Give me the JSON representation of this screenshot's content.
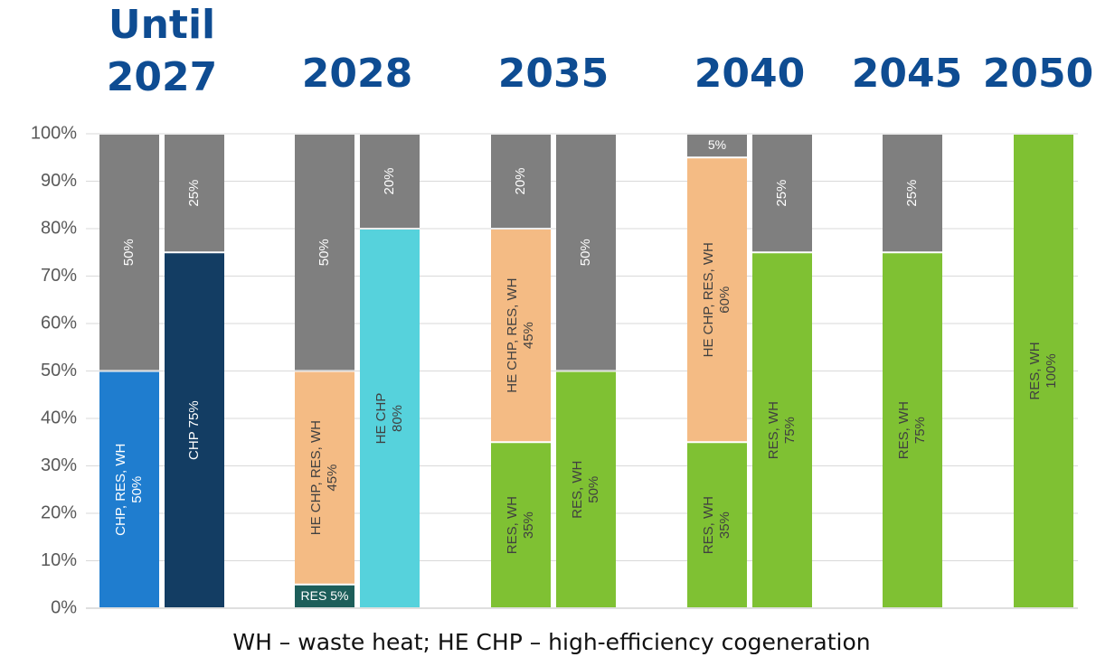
{
  "chart_data": {
    "type": "stacked_bar",
    "footnote": "WH – waste heat; HE CHP – high-efficiency cogeneration",
    "ylim": [
      0,
      100
    ],
    "yticks": [
      {
        "value": 0,
        "label": "0%"
      },
      {
        "value": 10,
        "label": "10%"
      },
      {
        "value": 20,
        "label": "20%"
      },
      {
        "value": 30,
        "label": "30%"
      },
      {
        "value": 40,
        "label": "40%"
      },
      {
        "value": 50,
        "label": "50%"
      },
      {
        "value": 60,
        "label": "60%"
      },
      {
        "value": 70,
        "label": "70%"
      },
      {
        "value": 80,
        "label": "80%"
      },
      {
        "value": 90,
        "label": "90%"
      },
      {
        "value": 100,
        "label": "100%"
      }
    ],
    "grid": true,
    "groups": [
      {
        "label": "Until 2027",
        "bars": [
          {
            "segments": [
              {
                "name": "CHP, RES, WH",
                "value": 50,
                "value_label": "50%",
                "color": "#1f7dcf"
              },
              {
                "value": 50,
                "value_label": "50%",
                "color": "#7f7f7f"
              }
            ]
          },
          {
            "segments": [
              {
                "name": "CHP",
                "value": 75,
                "value_label": "75%",
                "color": "#133d63"
              },
              {
                "value": 25,
                "value_label": "25%",
                "color": "#7f7f7f"
              }
            ]
          }
        ]
      },
      {
        "label": "2028",
        "bars": [
          {
            "segments": [
              {
                "name": "RES",
                "value": 5,
                "value_label": "5%",
                "color": "#1d5e5a"
              },
              {
                "name": "HE CHP, RES, WH",
                "value": 45,
                "value_label": "45%",
                "color": "#f4bb84"
              },
              {
                "value": 50,
                "value_label": "50%",
                "color": "#7f7f7f"
              }
            ]
          },
          {
            "segments": [
              {
                "name": "HE CHP",
                "value": 80,
                "value_label": "80%",
                "color": "#56d2dc"
              },
              {
                "value": 20,
                "value_label": "20%",
                "color": "#7f7f7f"
              }
            ]
          }
        ]
      },
      {
        "label": "2035",
        "bars": [
          {
            "segments": [
              {
                "name": "RES, WH",
                "value": 35,
                "value_label": "35%",
                "color": "#7fc133"
              },
              {
                "name": "HE CHP, RES, WH",
                "value": 45,
                "value_label": "45%",
                "color": "#f4bb84"
              },
              {
                "value": 20,
                "value_label": "20%",
                "color": "#7f7f7f"
              }
            ]
          },
          {
            "segments": [
              {
                "name": "RES, WH",
                "value": 50,
                "value_label": "50%",
                "color": "#7fc133"
              },
              {
                "value": 50,
                "value_label": "50%",
                "color": "#7f7f7f"
              }
            ]
          }
        ]
      },
      {
        "label": "2040",
        "bars": [
          {
            "segments": [
              {
                "name": "RES, WH",
                "value": 35,
                "value_label": "35%",
                "color": "#7fc133"
              },
              {
                "name": "HE CHP, RES, WH",
                "value": 60,
                "value_label": "60%",
                "color": "#f4bb84"
              },
              {
                "value": 5,
                "value_label": "5%",
                "color": "#7f7f7f"
              }
            ]
          },
          {
            "segments": [
              {
                "name": "RES, WH",
                "value": 75,
                "value_label": "75%",
                "color": "#7fc133"
              },
              {
                "value": 25,
                "value_label": "25%",
                "color": "#7f7f7f"
              }
            ]
          }
        ]
      },
      {
        "label": "2045",
        "bars": [
          {
            "segments": [
              {
                "name": "RES, WH",
                "value": 75,
                "value_label": "75%",
                "color": "#7fc133"
              },
              {
                "value": 25,
                "value_label": "25%",
                "color": "#7f7f7f"
              }
            ]
          }
        ]
      },
      {
        "label": "2050",
        "bars": [
          {
            "segments": [
              {
                "name": "RES, WH",
                "value": 100,
                "value_label": "100%",
                "color": "#7fc133"
              }
            ]
          }
        ]
      }
    ]
  }
}
